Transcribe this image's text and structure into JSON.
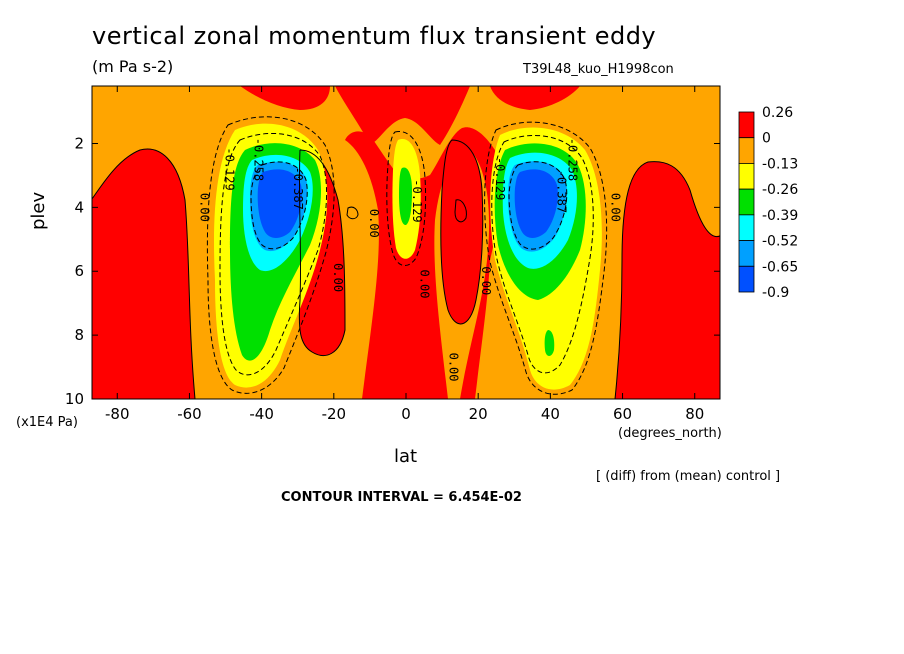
{
  "title": "vertical zonal momentum flux transient eddy",
  "units": "(m Pa s-2)",
  "run_label": "T39L48_kuo_H1998con",
  "note": "[ (diff) from (mean) control ]",
  "contour_interval": "CONTOUR INTERVAL = 6.454E-02",
  "chart_data": {
    "type": "heatmap",
    "title": "vertical zonal momentum flux transient eddy",
    "xlabel": "lat",
    "x_units": "(degrees_north)",
    "ylabel": "plev",
    "y_units": "(x1E4 Pa)",
    "xlim": [
      -87,
      87
    ],
    "ylim": [
      10,
      0.2
    ],
    "x_ticks": [
      -80,
      -60,
      -40,
      -20,
      0,
      20,
      40,
      60,
      80
    ],
    "x_tick_labels": [
      "-80",
      "-60",
      "-40",
      "-20",
      "0",
      "20",
      "40",
      "60",
      "80"
    ],
    "y_ticks": [
      2,
      4,
      6,
      8,
      10
    ],
    "y_tick_labels": [
      "2",
      "4",
      "6",
      "8",
      "10"
    ],
    "colorbar": {
      "levels": [
        "0.26",
        "0",
        "-0.13",
        "-0.26",
        "-0.39",
        "-0.52",
        "-0.65",
        "-0.9"
      ],
      "colors": [
        "#ff0000",
        "#ffa500",
        "#ffff00",
        "#00e000",
        "#00ffff",
        "#00a0ff",
        "#0050ff"
      ]
    },
    "contour_labels": [
      {
        "text": "0.00",
        "lat": -57,
        "plev": 4.0
      },
      {
        "text": "-0.129",
        "lat": -50,
        "plev": 2.8
      },
      {
        "text": "-0.258",
        "lat": -42,
        "plev": 2.5
      },
      {
        "text": "-0.387",
        "lat": -31,
        "plev": 3.4
      },
      {
        "text": "0.00",
        "lat": -20,
        "plev": 6.2
      },
      {
        "text": "0.00",
        "lat": -10,
        "plev": 4.5
      },
      {
        "text": "-0.129",
        "lat": 2,
        "plev": 3.8
      },
      {
        "text": "0.00",
        "lat": 4,
        "plev": 6.4
      },
      {
        "text": "0.00",
        "lat": 12,
        "plev": 9.0
      },
      {
        "text": "0.00",
        "lat": 21,
        "plev": 6.3
      },
      {
        "text": "-0.129",
        "lat": 25,
        "plev": 3.1
      },
      {
        "text": "-0.258",
        "lat": 45,
        "plev": 2.5
      },
      {
        "text": "-0.387",
        "lat": 42,
        "plev": 3.5
      },
      {
        "text": "0.00",
        "lat": 57,
        "plev": 4.0
      }
    ],
    "minima": [
      {
        "lat": -35,
        "plev": 3.7,
        "value": -0.9
      },
      {
        "lat": 36,
        "plev": 3.7,
        "value": -0.9
      }
    ]
  }
}
